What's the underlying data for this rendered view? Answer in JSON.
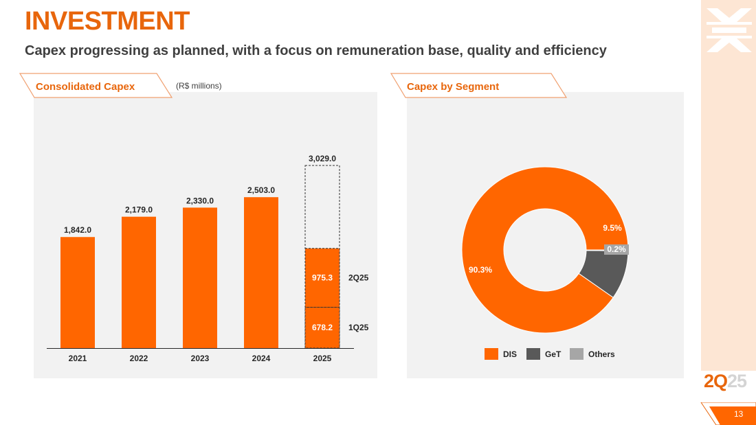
{
  "header": {
    "title": "INVESTMENT",
    "subtitle": "Capex progressing as planned, with a focus on remuneration base, quality and efficiency"
  },
  "colors": {
    "accent": "#ff6600",
    "brand": "#e8660c",
    "dark_gray": "#595959",
    "light_gray": "#a6a6a6",
    "panel": "#f2f2f2"
  },
  "left_panel": {
    "tab_label": "Consolidated Capex",
    "units": "(R$ millions)"
  },
  "right_panel": {
    "tab_label": "Capex by Segment"
  },
  "chart_data": [
    {
      "type": "bar",
      "categories": [
        "2021",
        "2022",
        "2023",
        "2024",
        "2025"
      ],
      "values": [
        1842.0,
        2179.0,
        2330.0,
        2503.0,
        3029.0
      ],
      "value_labels": [
        "1,842.0",
        "2,179.0",
        "2,330.0",
        "2,503.0",
        "3,029.0"
      ],
      "stacked_2025": [
        {
          "name": "1Q25",
          "value": 678.2,
          "label": "678.2"
        },
        {
          "name": "2Q25",
          "value": 975.3,
          "label": "975.3"
        }
      ],
      "ylim": [
        0,
        3029.0
      ],
      "title": "",
      "xlabel": "",
      "ylabel": ""
    },
    {
      "type": "pie",
      "donut": true,
      "slices": [
        {
          "name": "DIS",
          "value": 90.3,
          "label": "90.3%",
          "color": "#ff6600"
        },
        {
          "name": "GeT",
          "value": 9.5,
          "label": "9.5%",
          "color": "#595959"
        },
        {
          "name": "Others",
          "value": 0.2,
          "label": "0.2%",
          "color": "#a6a6a6"
        }
      ],
      "legend": [
        "DIS",
        "GeT",
        "Others"
      ],
      "legend_placement": "bottom"
    }
  ],
  "footer": {
    "quarter_main": "2Q",
    "quarter_dim": "25",
    "page_number": "13"
  }
}
